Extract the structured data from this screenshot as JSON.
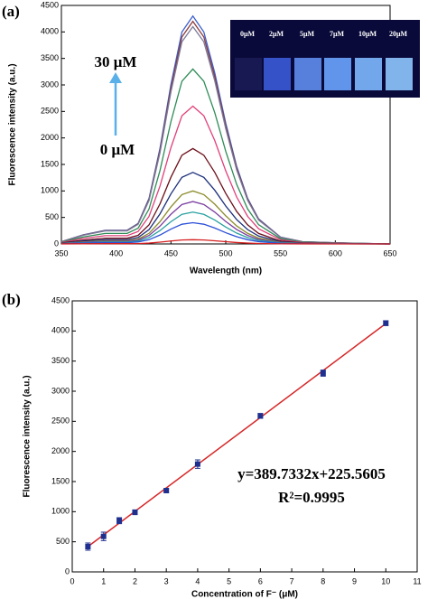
{
  "chart_data": [
    {
      "type": "line",
      "panel": "(a)",
      "x_label": "Wavelength (nm)",
      "y_label": "Fluorescence intensity (a.u.)",
      "annotations": [
        "30 μM",
        "0 μM"
      ],
      "inset_labels": [
        "0μM",
        "2μM",
        "5μM",
        "7μM",
        "10μM",
        "20μM"
      ],
      "x": [
        350,
        370,
        390,
        400,
        410,
        420,
        430,
        440,
        450,
        460,
        470,
        480,
        490,
        500,
        510,
        520,
        530,
        550,
        570,
        600,
        650
      ],
      "series": [
        {
          "color": "#3a5fcd",
          "values": [
            43,
            172,
            258,
            258,
            258,
            387,
            860,
            1806,
            3010,
            3999,
            4300,
            3999,
            3225,
            2279,
            1462,
            860,
            473,
            129,
            43,
            22,
            0
          ]
        },
        {
          "color": "#8b3a3a",
          "values": [
            42,
            168,
            252,
            252,
            252,
            378,
            840,
            1764,
            2940,
            3906,
            4200,
            3906,
            3150,
            2226,
            1428,
            840,
            462,
            126,
            42,
            21,
            0
          ]
        },
        {
          "color": "#7a7a9a",
          "values": [
            41,
            164,
            246,
            246,
            246,
            369,
            820,
            1722,
            2870,
            3813,
            4100,
            3813,
            3075,
            2173,
            1394,
            820,
            451,
            123,
            41,
            21,
            0
          ]
        },
        {
          "color": "#2e8b57",
          "values": [
            33,
            132,
            198,
            198,
            198,
            297,
            660,
            1386,
            2310,
            3069,
            3300,
            3069,
            2475,
            1749,
            1122,
            660,
            363,
            99,
            33,
            17,
            0
          ]
        },
        {
          "color": "#e0407a",
          "values": [
            26,
            104,
            156,
            156,
            156,
            234,
            520,
            1092,
            1820,
            2418,
            2600,
            2418,
            1950,
            1378,
            884,
            520,
            286,
            78,
            26,
            13,
            0
          ]
        },
        {
          "color": "#6b0f1a",
          "values": [
            18,
            72,
            108,
            108,
            108,
            162,
            360,
            756,
            1260,
            1674,
            1800,
            1674,
            1350,
            954,
            612,
            360,
            198,
            54,
            18,
            9,
            0
          ]
        },
        {
          "color": "#1c2f7a",
          "values": [
            14,
            54,
            81,
            81,
            81,
            122,
            270,
            567,
            945,
            1256,
            1350,
            1256,
            1013,
            716,
            459,
            270,
            149,
            41,
            14,
            7,
            0
          ]
        },
        {
          "color": "#8b8b2a",
          "values": [
            10,
            40,
            60,
            60,
            60,
            90,
            200,
            420,
            700,
            930,
            1000,
            930,
            750,
            530,
            340,
            200,
            110,
            30,
            10,
            5,
            0
          ]
        },
        {
          "color": "#7b3fa0",
          "values": [
            8,
            32,
            48,
            48,
            48,
            72,
            160,
            336,
            560,
            744,
            800,
            744,
            600,
            424,
            272,
            160,
            88,
            24,
            8,
            4,
            0
          ]
        },
        {
          "color": "#2aa0a0",
          "values": [
            6,
            24,
            36,
            36,
            36,
            54,
            120,
            252,
            420,
            558,
            600,
            558,
            450,
            318,
            204,
            120,
            66,
            18,
            6,
            3,
            0
          ]
        },
        {
          "color": "#2b50d8",
          "values": [
            4,
            16,
            24,
            24,
            24,
            36,
            80,
            168,
            280,
            372,
            400,
            372,
            300,
            212,
            136,
            80,
            44,
            12,
            4,
            2,
            0
          ]
        },
        {
          "color": "#d62020",
          "values": [
            1,
            3,
            5,
            5,
            5,
            7,
            16,
            34,
            56,
            74,
            80,
            74,
            60,
            42,
            27,
            16,
            9,
            2,
            1,
            0,
            0
          ]
        }
      ],
      "xlim": [
        350,
        650
      ],
      "xticks": [
        350,
        400,
        450,
        500,
        550,
        600,
        650
      ],
      "ylim": [
        0,
        4500
      ],
      "yticks": [
        0,
        500,
        1000,
        1500,
        2000,
        2500,
        3000,
        3500,
        4000,
        4500
      ]
    },
    {
      "type": "scatter",
      "panel": "(b)",
      "x_label": "Concentration of F⁻ (μM)",
      "y_label": "Fluorescence intensity (a.u.)",
      "annotations": [
        "y=389.7332x+225.5605",
        "R²=0.9995"
      ],
      "x": [
        0.5,
        1,
        1.5,
        2,
        3,
        4,
        6,
        8,
        10
      ],
      "values": [
        420,
        590,
        850,
        990,
        1350,
        1790,
        2590,
        3300,
        4130
      ],
      "errors": [
        60,
        70,
        50,
        40,
        30,
        70,
        40,
        50,
        40
      ],
      "color": "#1f2f8f",
      "fit": {
        "x": [
          0.5,
          10
        ],
        "values": [
          420,
          4123
        ],
        "color": "#d62728"
      },
      "xlim": [
        0,
        11
      ],
      "xticks": [
        0,
        1,
        2,
        3,
        4,
        5,
        6,
        7,
        8,
        9,
        10,
        11
      ],
      "ylim": [
        0,
        4500
      ],
      "yticks": [
        0,
        500,
        1000,
        1500,
        2000,
        2500,
        3000,
        3500,
        4000,
        4500
      ]
    }
  ]
}
